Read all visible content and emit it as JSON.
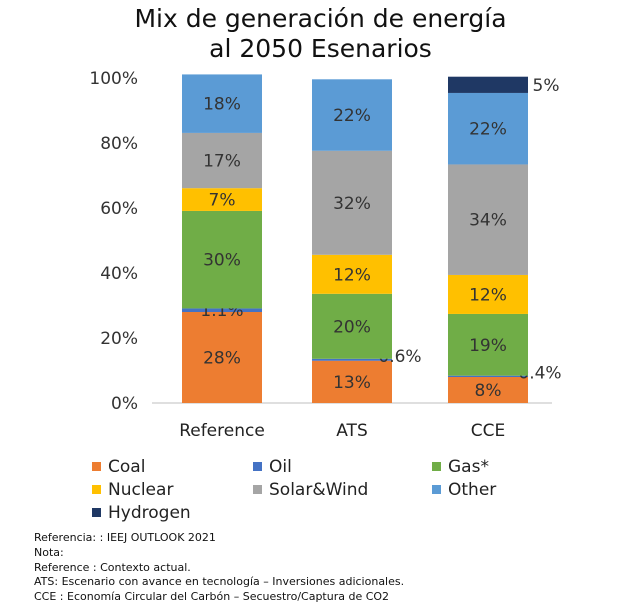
{
  "title_line1": "Mix de generación de energía",
  "title_line2": "al 2050 Esenarios",
  "chart_data": {
    "type": "bar",
    "stacked": true,
    "categories": [
      "Reference",
      "ATS",
      "CCE"
    ],
    "series": [
      {
        "name": "Coal",
        "color": "#ED7D31",
        "values": [
          28,
          13,
          8
        ],
        "labels": [
          "28%",
          "13%",
          "8%"
        ]
      },
      {
        "name": "Oil",
        "color": "#4472C4",
        "values": [
          1.1,
          0.6,
          0.4
        ],
        "labels": [
          "1.1%",
          "0.6%",
          "0.4%"
        ]
      },
      {
        "name": "Gas*",
        "color": "#70AD47",
        "values": [
          30,
          20,
          19
        ],
        "labels": [
          "30%",
          "20%",
          "19%"
        ]
      },
      {
        "name": "Nuclear",
        "color": "#FFC000",
        "values": [
          7,
          12,
          12
        ],
        "labels": [
          "7%",
          "12%",
          "12%"
        ]
      },
      {
        "name": "Solar&Wind",
        "color": "#A5A5A5",
        "values": [
          17,
          32,
          34
        ],
        "labels": [
          "17%",
          "32%",
          "34%"
        ]
      },
      {
        "name": "Other",
        "color": "#5B9BD5",
        "values": [
          18,
          22,
          22
        ],
        "labels": [
          "18%",
          "22%",
          "22%"
        ]
      },
      {
        "name": "Hydrogen",
        "color": "#1F3864",
        "values": [
          0,
          0,
          5
        ],
        "labels": [
          "",
          "",
          "5%"
        ]
      }
    ],
    "y_ticks": [
      "0%",
      "20%",
      "40%",
      "60%",
      "80%",
      "100%"
    ],
    "ylim": [
      0,
      100
    ],
    "legend_position": "bottom"
  },
  "notes": [
    "Referencia: : IEEJ OUTLOOK 2021",
    "Nota:",
    "Reference : Contexto actual.",
    "ATS: Escenario con avance en tecnología – Inversiones adicionales.",
    "CCE : Economía Circular del Carbón – Secuestro/Captura de CO2"
  ]
}
